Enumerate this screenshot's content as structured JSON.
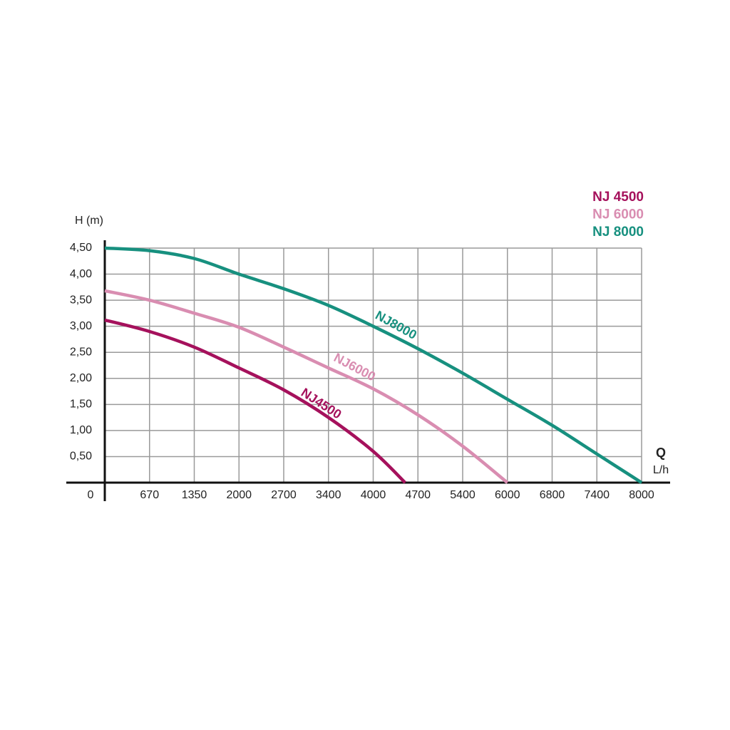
{
  "chart_data": {
    "type": "line",
    "y_label": "H (m)",
    "x_label": "Q",
    "x_unit": "L/h",
    "xlim": [
      0,
      8000
    ],
    "ylim": [
      0,
      4.5
    ],
    "xticks": [
      0,
      670,
      1350,
      2000,
      2700,
      3400,
      4000,
      4700,
      5400,
      6000,
      6800,
      7400,
      8000
    ],
    "yticks": [
      {
        "value": 0.5,
        "label": "0,50"
      },
      {
        "value": 1.0,
        "label": "1,00"
      },
      {
        "value": 1.5,
        "label": "1,50"
      },
      {
        "value": 2.0,
        "label": "2,00"
      },
      {
        "value": 2.5,
        "label": "2,50"
      },
      {
        "value": 3.0,
        "label": "3,00"
      },
      {
        "value": 3.5,
        "label": "3,50"
      },
      {
        "value": 4.0,
        "label": "4,00"
      },
      {
        "value": 4.5,
        "label": "4,50"
      }
    ],
    "grid": true,
    "series": [
      {
        "name": "NJ 4500",
        "annotation": "NJ4500",
        "color": "#a5115c",
        "x": [
          0,
          670,
          1350,
          2000,
          2700,
          3400,
          4000,
          4500
        ],
        "values": [
          3.12,
          2.9,
          2.6,
          2.2,
          1.78,
          1.25,
          0.6,
          0
        ]
      },
      {
        "name": "NJ 6000",
        "annotation": "NJ6000",
        "color": "#d98db1",
        "x": [
          0,
          670,
          1350,
          2000,
          2700,
          3400,
          4000,
          4700,
          5400,
          6000
        ],
        "values": [
          3.68,
          3.5,
          3.25,
          2.98,
          2.6,
          2.2,
          1.8,
          1.3,
          0.7,
          0
        ]
      },
      {
        "name": "NJ 8000",
        "annotation": "NJ8000",
        "color": "#17907f",
        "x": [
          0,
          670,
          1350,
          2000,
          2700,
          3400,
          4000,
          4700,
          5400,
          6000,
          6800,
          7400,
          8000
        ],
        "values": [
          4.5,
          4.45,
          4.3,
          4.0,
          3.72,
          3.4,
          3.0,
          2.57,
          2.1,
          1.6,
          1.1,
          0.55,
          0
        ]
      }
    ]
  }
}
